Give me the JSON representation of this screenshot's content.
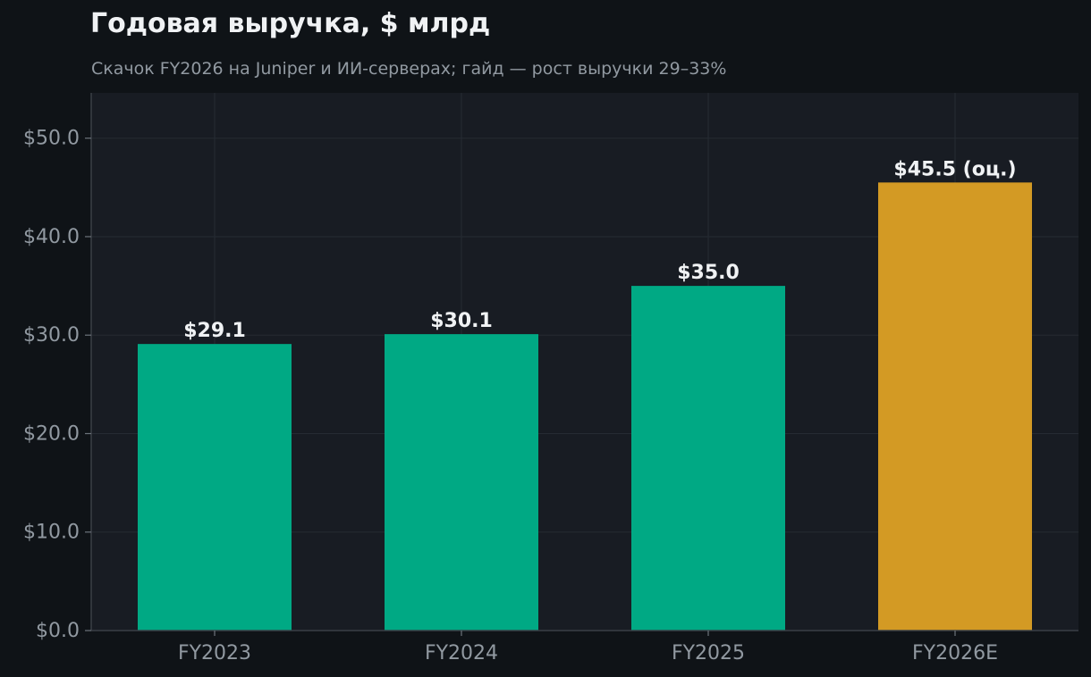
{
  "chart_data": {
    "type": "bar",
    "title": "Годовая выручка, $ млрд",
    "subtitle": "Скачок FY2026 на Juniper и ИИ-серверах; гайд — рост выручки 29–33%",
    "xlabel": "",
    "ylabel": "",
    "categories": [
      "FY2023",
      "FY2024",
      "FY2025",
      "FY2026E"
    ],
    "values": [
      29.1,
      30.1,
      35.0,
      45.5
    ],
    "data_labels": [
      "$29.1",
      "$30.1",
      "$35.0",
      "$45.5 (оц.)"
    ],
    "ylim": [
      0,
      54.6
    ],
    "yticks": [
      0,
      10,
      20,
      30,
      40,
      50
    ],
    "ytick_labels": [
      "$0.0",
      "$10.0",
      "$20.0",
      "$30.0",
      "$40.0",
      "$50.0"
    ],
    "grid": true,
    "colors": {
      "actual": "#00a984",
      "estimate": "#d39a24",
      "plot_background": "#181c23",
      "page_background": "#0f1317",
      "grid": "#262b33",
      "tick_text": "#9199a1",
      "label_text": "#f0f2f4"
    },
    "estimate_flags": [
      false,
      false,
      false,
      true
    ]
  }
}
